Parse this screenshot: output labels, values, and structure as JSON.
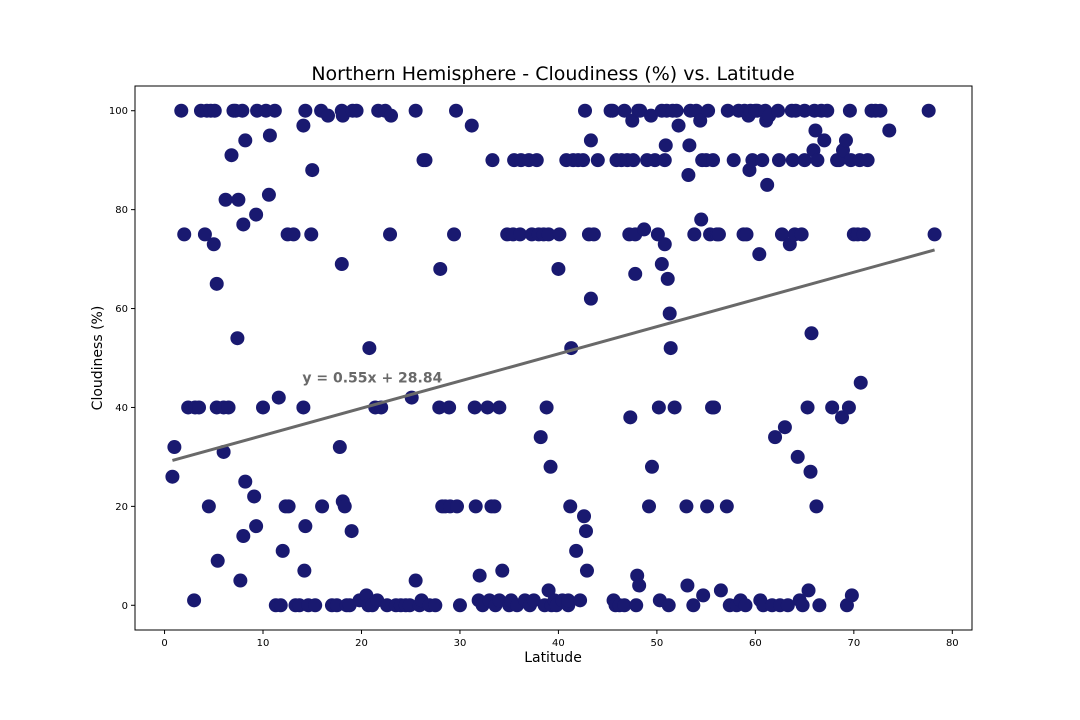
{
  "chart_data": {
    "type": "scatter",
    "title": "Northern Hemisphere - Cloudiness (%) vs. Latitude",
    "xlabel": "Latitude",
    "ylabel": "Cloudiness (%)",
    "xlim": [
      -3,
      82
    ],
    "ylim": [
      -5,
      105
    ],
    "xticks": [
      0,
      10,
      20,
      30,
      40,
      50,
      60,
      70,
      80
    ],
    "yticks": [
      0,
      20,
      40,
      60,
      80,
      100
    ],
    "grid": false,
    "point_color": "#191970",
    "line_color": "#696969",
    "regression": {
      "slope": 0.55,
      "intercept": 28.84,
      "x_range": [
        0.8,
        78.2
      ]
    },
    "annotation": {
      "text": "y = 0.55x + 28.84",
      "x": 14,
      "y": 45,
      "color": "#696969"
    },
    "points": [
      [
        0.8,
        26
      ],
      [
        1,
        32
      ],
      [
        1.7,
        100
      ],
      [
        2,
        75
      ],
      [
        2.4,
        40
      ],
      [
        3,
        1
      ],
      [
        3.1,
        40
      ],
      [
        3.5,
        40
      ],
      [
        3.7,
        100
      ],
      [
        4.1,
        75
      ],
      [
        4.3,
        100
      ],
      [
        4.5,
        20
      ],
      [
        4.7,
        100
      ],
      [
        5,
        73
      ],
      [
        5.1,
        100
      ],
      [
        5.3,
        65
      ],
      [
        5.3,
        40
      ],
      [
        5.4,
        9
      ],
      [
        6,
        40
      ],
      [
        6,
        31
      ],
      [
        6.2,
        82
      ],
      [
        6.5,
        40
      ],
      [
        6.8,
        91
      ],
      [
        7,
        100
      ],
      [
        7.2,
        100
      ],
      [
        7.4,
        54
      ],
      [
        7.5,
        82
      ],
      [
        7.7,
        5
      ],
      [
        7.9,
        100
      ],
      [
        8,
        14
      ],
      [
        8,
        77
      ],
      [
        8.2,
        94
      ],
      [
        8.2,
        25
      ],
      [
        9.1,
        22
      ],
      [
        9.3,
        16
      ],
      [
        9.3,
        79
      ],
      [
        9.4,
        100
      ],
      [
        10,
        40
      ],
      [
        10.3,
        100
      ],
      [
        10.6,
        83
      ],
      [
        10.7,
        95
      ],
      [
        11.2,
        100
      ],
      [
        11.3,
        0
      ],
      [
        11.6,
        42
      ],
      [
        11.8,
        0
      ],
      [
        12,
        11
      ],
      [
        12.3,
        20
      ],
      [
        12.5,
        75
      ],
      [
        12.6,
        20
      ],
      [
        13.1,
        75
      ],
      [
        13.3,
        0
      ],
      [
        13.7,
        0
      ],
      [
        14.1,
        97
      ],
      [
        14.1,
        40
      ],
      [
        14.2,
        7
      ],
      [
        14.3,
        100
      ],
      [
        14.3,
        16
      ],
      [
        14.6,
        0
      ],
      [
        14.9,
        75
      ],
      [
        15,
        88
      ],
      [
        15.3,
        0
      ],
      [
        15.9,
        100
      ],
      [
        16,
        20
      ],
      [
        16.6,
        99
      ],
      [
        17,
        0
      ],
      [
        17.5,
        0
      ],
      [
        17.8,
        32
      ],
      [
        18,
        100
      ],
      [
        18,
        69
      ],
      [
        18.1,
        99
      ],
      [
        18.1,
        21
      ],
      [
        18.3,
        20
      ],
      [
        18.5,
        0
      ],
      [
        18.8,
        0
      ],
      [
        19,
        15
      ],
      [
        19.1,
        100
      ],
      [
        19.5,
        100
      ],
      [
        19.8,
        1
      ],
      [
        20.5,
        2
      ],
      [
        20.7,
        0
      ],
      [
        20.8,
        52
      ],
      [
        21.1,
        0
      ],
      [
        21.4,
        40
      ],
      [
        21.6,
        1
      ],
      [
        21.7,
        100
      ],
      [
        22,
        40
      ],
      [
        22.4,
        100
      ],
      [
        22.6,
        0
      ],
      [
        22.9,
        75
      ],
      [
        23,
        99
      ],
      [
        23.5,
        0
      ],
      [
        24,
        0
      ],
      [
        24.5,
        0
      ],
      [
        24.9,
        0
      ],
      [
        25.1,
        42
      ],
      [
        25.5,
        100
      ],
      [
        25.5,
        5
      ],
      [
        25.9,
        0
      ],
      [
        26.1,
        1
      ],
      [
        26.3,
        90
      ],
      [
        26.5,
        90
      ],
      [
        26.9,
        0
      ],
      [
        27.5,
        0
      ],
      [
        27.9,
        40
      ],
      [
        28,
        68
      ],
      [
        28.2,
        20
      ],
      [
        28.5,
        20
      ],
      [
        28.9,
        40
      ],
      [
        29,
        20
      ],
      [
        29.4,
        75
      ],
      [
        29.6,
        100
      ],
      [
        29.7,
        20
      ],
      [
        30,
        0
      ],
      [
        31.2,
        97
      ],
      [
        31.5,
        40
      ],
      [
        31.6,
        20
      ],
      [
        31.9,
        1
      ],
      [
        32,
        6
      ],
      [
        32.3,
        0
      ],
      [
        32.8,
        40
      ],
      [
        33,
        1
      ],
      [
        33.2,
        20
      ],
      [
        33.3,
        90
      ],
      [
        33.5,
        20
      ],
      [
        33.6,
        0
      ],
      [
        34,
        1
      ],
      [
        34,
        40
      ],
      [
        34.3,
        7
      ],
      [
        34.8,
        75
      ],
      [
        35,
        0
      ],
      [
        35.2,
        1
      ],
      [
        35.4,
        75
      ],
      [
        35.5,
        90
      ],
      [
        35.8,
        0
      ],
      [
        36.1,
        75
      ],
      [
        36.2,
        90
      ],
      [
        36.6,
        1
      ],
      [
        37,
        90
      ],
      [
        37.1,
        0
      ],
      [
        37.3,
        75
      ],
      [
        37.5,
        1
      ],
      [
        37.8,
        90
      ],
      [
        38,
        75
      ],
      [
        38.2,
        34
      ],
      [
        38.5,
        75
      ],
      [
        38.6,
        0
      ],
      [
        38.8,
        40
      ],
      [
        39,
        75
      ],
      [
        39,
        3
      ],
      [
        39.2,
        28
      ],
      [
        39.3,
        0
      ],
      [
        39.6,
        1
      ],
      [
        39.8,
        0
      ],
      [
        40,
        68
      ],
      [
        40.1,
        75
      ],
      [
        40.4,
        1
      ],
      [
        40.8,
        90
      ],
      [
        41,
        0
      ],
      [
        41,
        1
      ],
      [
        41.2,
        20
      ],
      [
        41.3,
        52
      ],
      [
        41.5,
        90
      ],
      [
        41.8,
        11
      ],
      [
        42,
        90
      ],
      [
        42.2,
        1
      ],
      [
        42.5,
        90
      ],
      [
        42.6,
        18
      ],
      [
        42.7,
        100
      ],
      [
        42.8,
        15
      ],
      [
        42.9,
        7
      ],
      [
        43.1,
        75
      ],
      [
        43.3,
        62
      ],
      [
        43.3,
        94
      ],
      [
        43.6,
        75
      ],
      [
        44,
        90
      ],
      [
        45.3,
        100
      ],
      [
        45.5,
        100
      ],
      [
        45.6,
        1
      ],
      [
        45.8,
        0
      ],
      [
        45.9,
        90
      ],
      [
        46.2,
        0
      ],
      [
        46.4,
        90
      ],
      [
        46.7,
        0
      ],
      [
        46.7,
        100
      ],
      [
        47,
        90
      ],
      [
        47.2,
        75
      ],
      [
        47.3,
        38
      ],
      [
        47.5,
        98
      ],
      [
        47.6,
        90
      ],
      [
        47.8,
        67
      ],
      [
        47.8,
        75
      ],
      [
        47.9,
        0
      ],
      [
        48,
        6
      ],
      [
        48.1,
        100
      ],
      [
        48.2,
        4
      ],
      [
        48.3,
        100
      ],
      [
        48.7,
        76
      ],
      [
        49,
        90
      ],
      [
        49.2,
        20
      ],
      [
        49.4,
        99
      ],
      [
        49.5,
        28
      ],
      [
        49.8,
        90
      ],
      [
        50.1,
        75
      ],
      [
        50.2,
        40
      ],
      [
        50.3,
        1
      ],
      [
        50.5,
        69
      ],
      [
        50.5,
        100
      ],
      [
        50.8,
        90
      ],
      [
        50.8,
        73
      ],
      [
        50.9,
        93
      ],
      [
        51,
        100
      ],
      [
        51.1,
        66
      ],
      [
        51.2,
        0
      ],
      [
        51.3,
        59
      ],
      [
        51.4,
        52
      ],
      [
        51.6,
        100
      ],
      [
        51.8,
        40
      ],
      [
        52,
        100
      ],
      [
        52.2,
        97
      ],
      [
        53,
        20
      ],
      [
        53.1,
        4
      ],
      [
        53.2,
        87
      ],
      [
        53.3,
        93
      ],
      [
        53.4,
        100
      ],
      [
        53.7,
        0
      ],
      [
        53.8,
        75
      ],
      [
        54,
        100
      ],
      [
        54.4,
        98
      ],
      [
        54.5,
        78
      ],
      [
        54.6,
        90
      ],
      [
        54.7,
        2
      ],
      [
        55,
        90
      ],
      [
        55.1,
        20
      ],
      [
        55.2,
        100
      ],
      [
        55.4,
        75
      ],
      [
        55.6,
        40
      ],
      [
        55.7,
        90
      ],
      [
        55.8,
        40
      ],
      [
        56.1,
        75
      ],
      [
        56.3,
        75
      ],
      [
        56.5,
        3
      ],
      [
        57.1,
        20
      ],
      [
        57.2,
        100
      ],
      [
        57.4,
        0
      ],
      [
        57.8,
        90
      ],
      [
        58.1,
        0
      ],
      [
        58.3,
        100
      ],
      [
        58.5,
        1
      ],
      [
        58.8,
        75
      ],
      [
        58.9,
        100
      ],
      [
        59,
        0
      ],
      [
        59.1,
        75
      ],
      [
        59.3,
        99
      ],
      [
        59.4,
        88
      ],
      [
        59.5,
        100
      ],
      [
        59.7,
        90
      ],
      [
        60,
        100
      ],
      [
        60.2,
        100
      ],
      [
        60.4,
        71
      ],
      [
        60.5,
        1
      ],
      [
        60.7,
        90
      ],
      [
        60.8,
        0
      ],
      [
        61,
        100
      ],
      [
        61.1,
        98
      ],
      [
        61.2,
        85
      ],
      [
        61.4,
        99
      ],
      [
        61.7,
        0
      ],
      [
        62,
        34
      ],
      [
        62.3,
        100
      ],
      [
        62.4,
        90
      ],
      [
        62.5,
        0
      ],
      [
        62.7,
        75
      ],
      [
        63,
        36
      ],
      [
        63.3,
        0
      ],
      [
        63.5,
        73
      ],
      [
        63.7,
        100
      ],
      [
        63.8,
        90
      ],
      [
        64,
        75
      ],
      [
        64.1,
        100
      ],
      [
        64.3,
        30
      ],
      [
        64.5,
        1
      ],
      [
        64.7,
        75
      ],
      [
        64.8,
        0
      ],
      [
        65,
        90
      ],
      [
        65,
        100
      ],
      [
        65.3,
        40
      ],
      [
        65.4,
        3
      ],
      [
        65.6,
        27
      ],
      [
        65.7,
        55
      ],
      [
        65.9,
        92
      ],
      [
        66,
        100
      ],
      [
        66.1,
        96
      ],
      [
        66.2,
        20
      ],
      [
        66.3,
        90
      ],
      [
        66.5,
        0
      ],
      [
        66.7,
        100
      ],
      [
        67,
        94
      ],
      [
        67.3,
        100
      ],
      [
        67.8,
        40
      ],
      [
        68.3,
        90
      ],
      [
        68.5,
        90
      ],
      [
        68.8,
        38
      ],
      [
        68.9,
        92
      ],
      [
        69.2,
        94
      ],
      [
        69.3,
        0
      ],
      [
        69.5,
        40
      ],
      [
        69.6,
        100
      ],
      [
        69.7,
        90
      ],
      [
        69.8,
        2
      ],
      [
        70,
        75
      ],
      [
        70.4,
        75
      ],
      [
        70.6,
        90
      ],
      [
        70.7,
        45
      ],
      [
        71,
        75
      ],
      [
        71.4,
        90
      ],
      [
        71.8,
        100
      ],
      [
        72.2,
        100
      ],
      [
        72.7,
        100
      ],
      [
        73.6,
        96
      ],
      [
        77.6,
        100
      ],
      [
        78.2,
        75
      ]
    ]
  }
}
